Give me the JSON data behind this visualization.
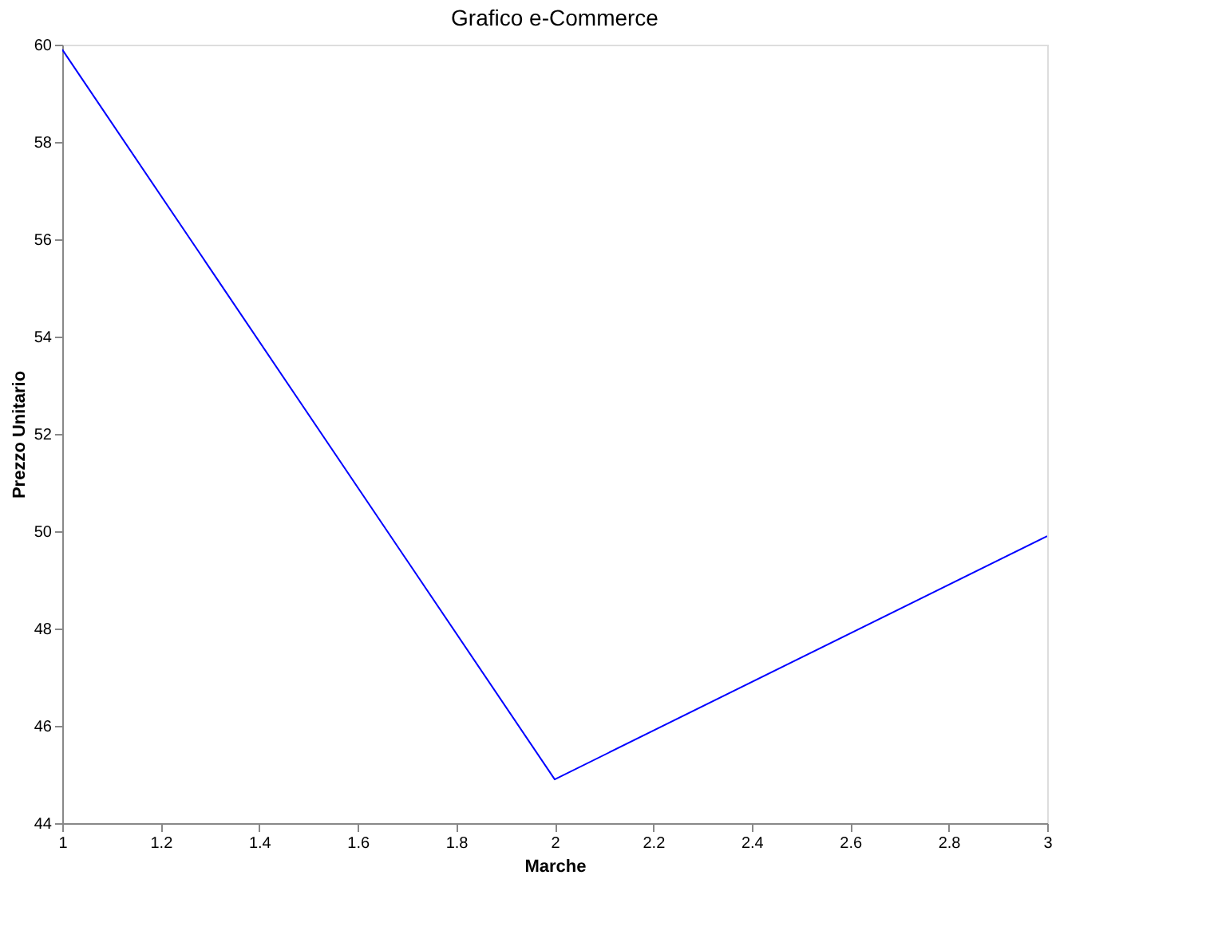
{
  "chart_data": {
    "type": "line",
    "title": "Grafico e-Commerce",
    "xlabel": "Marche",
    "ylabel": "Prezzo Unitario",
    "x": [
      1,
      2,
      3
    ],
    "series": [
      {
        "color": "#0000ff",
        "values": [
          59.9,
          44.9,
          49.9
        ]
      }
    ],
    "xlim": [
      1,
      3
    ],
    "xticks": [
      1,
      1.2,
      1.4,
      1.6,
      1.8,
      2,
      2.2,
      2.4,
      2.6,
      2.8,
      3
    ],
    "ylim": [
      44,
      60
    ],
    "yticks": [
      44,
      46,
      48,
      50,
      52,
      54,
      56,
      58,
      60
    ],
    "grid": false,
    "legend": false,
    "marker": "none",
    "line_style": "solid"
  }
}
